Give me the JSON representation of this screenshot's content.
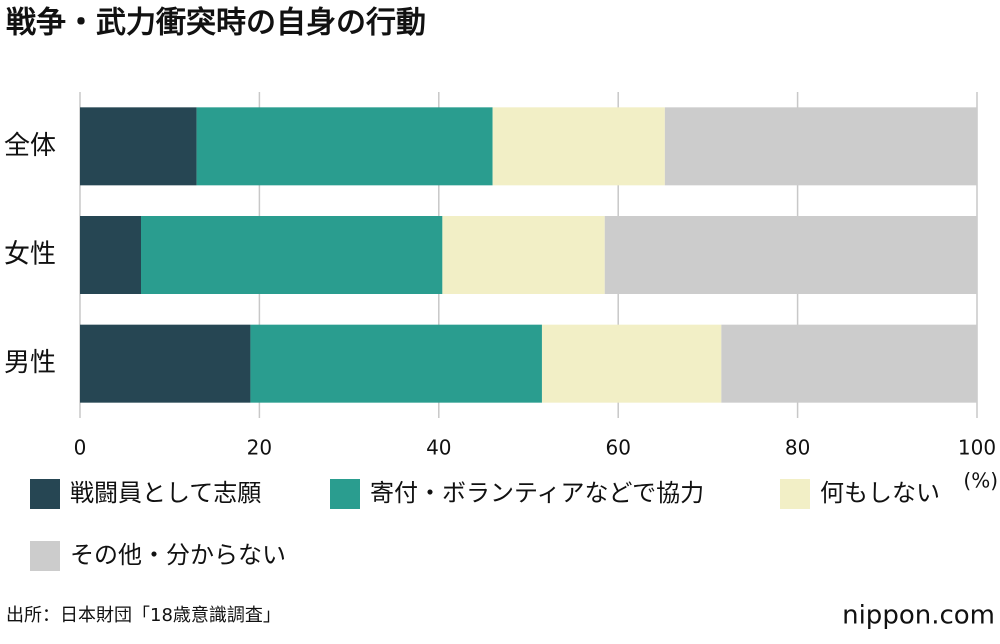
{
  "chart_data": {
    "type": "bar",
    "orientation": "horizontal",
    "stacked": true,
    "title": "戦争・武力衝突時の自身の行動",
    "categories": [
      "全体",
      "女性",
      "男性"
    ],
    "series": [
      {
        "name": "戦闘員として志願",
        "color": "#264653",
        "values": [
          13.0,
          6.8,
          19.0
        ]
      },
      {
        "name": "寄付・ボランティアなどで協力",
        "color": "#2a9d8f",
        "values": [
          33.0,
          33.6,
          32.5
        ]
      },
      {
        "name": "何もしない",
        "color": "#f2efc6",
        "values": [
          19.2,
          18.1,
          20.0
        ]
      },
      {
        "name": "その他・分からない",
        "color": "#cccccc",
        "values": [
          34.8,
          41.5,
          28.5
        ]
      }
    ],
    "xlim": [
      0,
      100
    ],
    "xticks": [
      0,
      20,
      40,
      60,
      80,
      100
    ],
    "x_unit_label": "(%)",
    "grid": true
  },
  "source": "出所：日本財団「18歳意識調査」",
  "brand": "nippon.com"
}
